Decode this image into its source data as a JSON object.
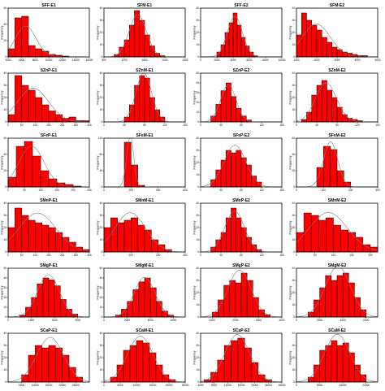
{
  "figure": {
    "panels": [
      {
        "title": "SFF-E1",
        "ylabel": "Frequency"
      },
      {
        "title": "SFM-E1",
        "ylabel": "Frequency"
      },
      {
        "title": "SFF-E2",
        "ylabel": "Frequency"
      },
      {
        "title": "SFM-E2",
        "ylabel": "Frequency"
      },
      {
        "title": "SZnP-E1",
        "ylabel": "Frequency"
      },
      {
        "title": "SZnM-E1",
        "ylabel": "Frequency"
      },
      {
        "title": "SZnP-E2",
        "ylabel": "Frequency"
      },
      {
        "title": "SZnM-E2",
        "ylabel": "Frequency"
      },
      {
        "title": "SFeP-E1",
        "ylabel": "Frequency"
      },
      {
        "title": "SFeM-E1",
        "ylabel": "Frequency"
      },
      {
        "title": "SFeP-E2",
        "ylabel": "Frequency"
      },
      {
        "title": "SFeM-E2",
        "ylabel": "Frequency"
      },
      {
        "title": "SMnP-E1",
        "ylabel": "Frequency"
      },
      {
        "title": "SMnM-E1",
        "ylabel": "Frequency"
      },
      {
        "title": "SMnP-E2",
        "ylabel": "Frequency"
      },
      {
        "title": "SMnM-E2",
        "ylabel": "Frequency"
      },
      {
        "title": "SMgP-E1",
        "ylabel": "Frequency"
      },
      {
        "title": "SMgM-E1",
        "ylabel": "Frequency"
      },
      {
        "title": "SMgP-E2",
        "ylabel": "Frequency"
      },
      {
        "title": "SMgM-E2",
        "ylabel": "Frequency"
      },
      {
        "title": "SCaP-E1",
        "ylabel": "Frequency"
      },
      {
        "title": "SCaM-E1",
        "ylabel": "Frequency"
      },
      {
        "title": "SCaP-E2",
        "ylabel": "Frequency"
      },
      {
        "title": "SCaM-E2",
        "ylabel": "Frequency"
      }
    ]
  },
  "chart_data": [
    {
      "type": "bar",
      "title": "SFF-E1",
      "ylabel": "Frequency",
      "xlabel": "",
      "bin_start": 4000,
      "bin_width": 1000,
      "values": [
        10,
        48,
        50,
        14,
        10,
        7,
        3,
        2,
        1,
        0,
        0,
        0
      ],
      "xlim": [
        4000,
        16000
      ],
      "ylim": [
        0,
        60
      ],
      "xticks": [
        4000,
        6000,
        8000,
        10000,
        12000,
        14000,
        16000
      ],
      "yticks": [
        0,
        20,
        40,
        60
      ],
      "fit_curve": "normal"
    },
    {
      "type": "bar",
      "title": "SFM-E1",
      "ylabel": "Frequency",
      "xlabel": "",
      "bin_start": 1000,
      "bin_width": 100,
      "values": [
        2,
        8,
        14,
        26,
        38,
        30,
        18,
        9,
        3,
        1
      ],
      "xlim": [
        800,
        2400
      ],
      "ylim": [
        0,
        40
      ],
      "xticks": [
        800,
        1200,
        1600,
        2000,
        2400
      ],
      "yticks": [
        0,
        10,
        20,
        30,
        40
      ],
      "fit_curve": "normal"
    },
    {
      "type": "bar",
      "title": "SFF-E2",
      "ylabel": "Frequency",
      "xlabel": "",
      "bin_start": 2000,
      "bin_width": 500,
      "values": [
        4,
        10,
        20,
        28,
        36,
        26,
        16,
        9,
        4,
        1
      ],
      "xlim": [
        0,
        10000
      ],
      "ylim": [
        0,
        40
      ],
      "xticks": [
        0,
        2000,
        4000,
        6000,
        8000,
        10000
      ],
      "yticks": [
        0,
        10,
        20,
        30,
        40
      ],
      "fit_curve": "normal"
    },
    {
      "type": "bar",
      "title": "SFM-E2",
      "ylabel": "Frequency",
      "xlabel": "",
      "bin_start": 1000,
      "bin_width": 250,
      "values": [
        18,
        36,
        30,
        26,
        22,
        16,
        12,
        8,
        6,
        4,
        3,
        2,
        1,
        1,
        0,
        0
      ],
      "xlim": [
        1000,
        5000
      ],
      "ylim": [
        0,
        40
      ],
      "xticks": [
        1000,
        2000,
        3000,
        4000,
        5000
      ],
      "yticks": [
        0,
        10,
        20,
        30,
        40
      ],
      "fit_curve": "normal"
    },
    {
      "type": "bar",
      "title": "SZnP-E1",
      "ylabel": "Frequency",
      "xlabel": "",
      "bin_start": 0,
      "bin_width": 25,
      "values": [
        6,
        38,
        30,
        26,
        20,
        14,
        9,
        6,
        3,
        4,
        1,
        1
      ],
      "xlim": [
        0,
        300
      ],
      "ylim": [
        0,
        40
      ],
      "xticks": [
        0,
        50,
        100,
        150,
        200,
        250,
        300
      ],
      "yticks": [
        0,
        10,
        20,
        30,
        40
      ],
      "fit_curve": "normal"
    },
    {
      "type": "bar",
      "title": "SZnM-E1",
      "ylabel": "Frequency",
      "xlabel": "",
      "bin_start": 40,
      "bin_width": 10,
      "values": [
        4,
        14,
        30,
        38,
        36,
        20,
        10,
        4
      ],
      "xlim": [
        0,
        160
      ],
      "ylim": [
        0,
        40
      ],
      "xticks": [
        0,
        40,
        80,
        120,
        160
      ],
      "yticks": [
        0,
        10,
        20,
        30,
        40
      ],
      "fit_curve": "normal"
    },
    {
      "type": "bar",
      "title": "SZnP-E2",
      "ylabel": "Frequency",
      "xlabel": "",
      "bin_start": 20,
      "bin_width": 10,
      "values": [
        6,
        18,
        32,
        40,
        26,
        14,
        6,
        2
      ],
      "xlim": [
        0,
        160
      ],
      "ylim": [
        0,
        50
      ],
      "xticks": [
        0,
        40,
        80,
        120,
        160
      ],
      "yticks": [
        0,
        10,
        20,
        30,
        40,
        50
      ],
      "fit_curve": "normal"
    },
    {
      "type": "bar",
      "title": "SZnM-E2",
      "ylabel": "Frequency",
      "xlabel": "",
      "bin_start": 10,
      "bin_width": 10,
      "values": [
        2,
        8,
        22,
        30,
        34,
        26,
        20,
        12,
        6,
        3,
        2,
        1
      ],
      "xlim": [
        0,
        160
      ],
      "ylim": [
        0,
        40
      ],
      "xticks": [
        0,
        40,
        80,
        120,
        160
      ],
      "yticks": [
        0,
        10,
        20,
        30,
        40
      ],
      "fit_curve": "normal"
    },
    {
      "type": "bar",
      "title": "SFeP-E1",
      "ylabel": "Frequency",
      "xlabel": "",
      "bin_start": 0,
      "bin_width": 25,
      "values": [
        12,
        50,
        56,
        38,
        20,
        10,
        5,
        3,
        1,
        0
      ],
      "xlim": [
        0,
        250
      ],
      "ylim": [
        0,
        60
      ],
      "xticks": [
        0,
        50,
        100,
        150,
        200,
        250
      ],
      "yticks": [
        0,
        20,
        40,
        60
      ],
      "fit_curve": "normal"
    },
    {
      "type": "bar",
      "title": "SFeM-E1",
      "ylabel": "Frequency",
      "xlabel": "",
      "bin_start": 100,
      "bin_width": 50,
      "values": [
        0,
        110,
        54,
        4,
        0,
        0,
        0,
        0,
        0,
        0,
        0
      ],
      "xlim": [
        0,
        600
      ],
      "ylim": [
        0,
        120
      ],
      "xticks": [
        0,
        200,
        400,
        600
      ],
      "yticks": [
        0,
        40,
        80,
        120
      ],
      "fit_curve": "normal"
    },
    {
      "type": "bar",
      "title": "SFeP-E2",
      "ylabel": "Frequency",
      "xlabel": "",
      "bin_start": 20,
      "bin_width": 10,
      "values": [
        6,
        14,
        22,
        30,
        28,
        30,
        24,
        18,
        9,
        4
      ],
      "xlim": [
        0,
        160
      ],
      "ylim": [
        0,
        40
      ],
      "xticks": [
        0,
        40,
        80,
        120,
        160
      ],
      "yticks": [
        0,
        10,
        20,
        30,
        40
      ],
      "fit_curve": "normal"
    },
    {
      "type": "bar",
      "title": "SFeM-E2",
      "ylabel": "Frequency",
      "xlabel": "",
      "bin_start": 50,
      "bin_width": 25,
      "values": [
        0,
        24,
        50,
        46,
        20,
        6,
        0
      ],
      "xlim": [
        0,
        300
      ],
      "ylim": [
        0,
        60
      ],
      "xticks": [
        0,
        100,
        200,
        300
      ],
      "yticks": [
        0,
        20,
        40,
        60
      ],
      "fit_curve": "normal"
    },
    {
      "type": "bar",
      "title": "SMnP-E1",
      "ylabel": "Frequency",
      "xlabel": "",
      "bin_start": 0,
      "bin_width": 25,
      "values": [
        20,
        36,
        30,
        26,
        24,
        22,
        20,
        16,
        12,
        8,
        4,
        2
      ],
      "xlim": [
        0,
        300
      ],
      "ylim": [
        0,
        40
      ],
      "xticks": [
        0,
        50,
        100,
        150,
        200,
        250,
        300
      ],
      "yticks": [
        0,
        10,
        20,
        30,
        40
      ],
      "fit_curve": "normal"
    },
    {
      "type": "bar",
      "title": "SMnM-E1",
      "ylabel": "Frequency",
      "xlabel": "",
      "bin_start": 0,
      "bin_width": 25,
      "values": [
        20,
        28,
        24,
        26,
        28,
        22,
        18,
        10,
        6,
        2
      ],
      "xlim": [
        0,
        300
      ],
      "ylim": [
        0,
        40
      ],
      "xticks": [
        0,
        100,
        200,
        300
      ],
      "yticks": [
        0,
        10,
        20,
        30,
        40
      ],
      "fit_curve": "normal"
    },
    {
      "type": "bar",
      "title": "SMnP-E2",
      "ylabel": "Frequency",
      "xlabel": "",
      "bin_start": 20,
      "bin_width": 10,
      "values": [
        4,
        10,
        16,
        28,
        36,
        28,
        20,
        12,
        6,
        2
      ],
      "xlim": [
        0,
        160
      ],
      "ylim": [
        0,
        40
      ],
      "xticks": [
        0,
        40,
        80,
        120,
        160
      ],
      "yticks": [
        0,
        10,
        20,
        30,
        40
      ],
      "fit_curve": "normal"
    },
    {
      "type": "bar",
      "title": "SMnM-E2",
      "ylabel": "Frequency",
      "xlabel": "",
      "bin_start": 0,
      "bin_width": 20,
      "values": [
        16,
        32,
        30,
        26,
        28,
        22,
        18,
        16,
        12,
        6,
        4
      ],
      "xlim": [
        0,
        220
      ],
      "ylim": [
        0,
        40
      ],
      "xticks": [
        0,
        50,
        100,
        150,
        200
      ],
      "yticks": [
        0,
        10,
        20,
        30,
        40
      ],
      "fit_curve": "normal"
    },
    {
      "type": "bar",
      "title": "SMgP-E1",
      "ylabel": "Frequency",
      "xlabel": "",
      "bin_start": 500,
      "bin_width": 250,
      "values": [
        2,
        10,
        20,
        34,
        40,
        38,
        32,
        18,
        8,
        3
      ],
      "xlim": [
        0,
        3500
      ],
      "ylim": [
        0,
        50
      ],
      "xticks": [
        0,
        1000,
        2000,
        3000
      ],
      "yticks": [
        0,
        10,
        20,
        30,
        40,
        50
      ],
      "fit_curve": "normal"
    },
    {
      "type": "bar",
      "title": "SMgM-E1",
      "ylabel": "Frequency",
      "xlabel": "",
      "bin_start": 1000,
      "bin_width": 500,
      "values": [
        2,
        8,
        16,
        28,
        36,
        40,
        30,
        16,
        6,
        2
      ],
      "xlim": [
        0,
        7000
      ],
      "ylim": [
        0,
        50
      ],
      "xticks": [
        0,
        2000,
        4000,
        6000
      ],
      "yticks": [
        0,
        10,
        20,
        30,
        40,
        50
      ],
      "fit_curve": "normal"
    },
    {
      "type": "bar",
      "title": "SMgP-E2",
      "ylabel": "Frequency",
      "xlabel": "",
      "bin_start": 1000,
      "bin_width": 250,
      "values": [
        4,
        14,
        26,
        30,
        28,
        36,
        30,
        16,
        6,
        2
      ],
      "xlim": [
        500,
        4000
      ],
      "ylim": [
        0,
        40
      ],
      "xticks": [
        1000,
        2000,
        3000,
        4000
      ],
      "yticks": [
        0,
        10,
        20,
        30,
        40
      ],
      "fit_curve": "normal"
    },
    {
      "type": "bar",
      "title": "SMgM-E2",
      "ylabel": "Frequency",
      "xlabel": "",
      "bin_start": 1000,
      "bin_width": 500,
      "values": [
        4,
        14,
        24,
        34,
        30,
        34,
        36,
        28,
        16,
        6
      ],
      "xlim": [
        0,
        7000
      ],
      "ylim": [
        0,
        40
      ],
      "xticks": [
        0,
        2000,
        4000,
        6000
      ],
      "yticks": [
        0,
        10,
        20,
        30,
        40
      ],
      "fit_curve": "normal"
    },
    {
      "type": "bar",
      "title": "SCaP-E1",
      "ylabel": "Frequency",
      "xlabel": "",
      "bin_start": 5000,
      "bin_width": 2500,
      "values": [
        6,
        22,
        30,
        28,
        30,
        28,
        22,
        12,
        4
      ],
      "xlim": [
        0,
        30000
      ],
      "ylim": [
        0,
        40
      ],
      "xticks": [
        5000,
        10000,
        15000,
        20000,
        25000
      ],
      "yticks": [
        0,
        10,
        20,
        30,
        40
      ],
      "fit_curve": "normal"
    },
    {
      "type": "bar",
      "title": "SCaM-E1",
      "ylabel": "Frequency",
      "xlabel": "",
      "bin_start": 2000,
      "bin_width": 2000,
      "values": [
        4,
        14,
        26,
        30,
        34,
        32,
        24,
        14,
        6,
        2
      ],
      "xlim": [
        0,
        25000
      ],
      "ylim": [
        0,
        40
      ],
      "xticks": [
        0,
        5000,
        10000,
        15000,
        20000,
        25000
      ],
      "yticks": [
        0,
        10,
        20,
        30,
        40
      ],
      "fit_curve": "normal"
    },
    {
      "type": "bar",
      "title": "SCaP-E2",
      "ylabel": "Frequency",
      "xlabel": "",
      "bin_start": 5000,
      "bin_width": 2000,
      "values": [
        2,
        8,
        18,
        30,
        34,
        36,
        28,
        16,
        6,
        2
      ],
      "xlim": [
        4000,
        28000
      ],
      "ylim": [
        0,
        40
      ],
      "xticks": [
        4000,
        8000,
        12000,
        16000,
        20000,
        24000,
        28000
      ],
      "yticks": [
        0,
        10,
        20,
        30,
        40
      ],
      "fit_curve": "normal"
    },
    {
      "type": "bar",
      "title": "SCaM-E2",
      "ylabel": "Frequency",
      "xlabel": "",
      "bin_start": 4000,
      "bin_width": 2000,
      "values": [
        4,
        14,
        26,
        30,
        34,
        30,
        32,
        24,
        14,
        6
      ],
      "xlim": [
        0,
        28000
      ],
      "ylim": [
        0,
        40
      ],
      "xticks": [
        0,
        8000,
        16000,
        24000
      ],
      "yticks": [
        0,
        10,
        20,
        30,
        40
      ],
      "fit_curve": "normal"
    }
  ]
}
